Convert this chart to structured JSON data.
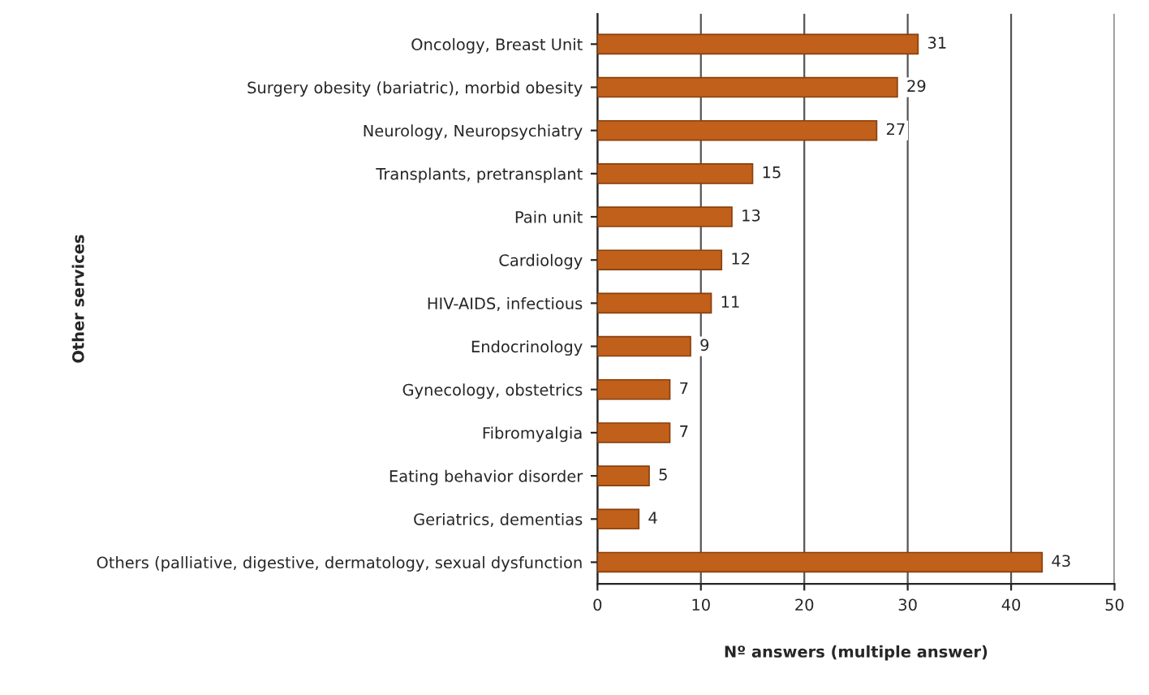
{
  "chart_data": {
    "type": "bar",
    "orientation": "horizontal",
    "categories": [
      "Oncology, Breast Unit",
      "Surgery obesity (bariatric), morbid obesity",
      "Neurology, Neuropsychiatry",
      "Transplants, pretransplant",
      "Pain unit",
      "Cardiology",
      "HIV-AIDS, infectious",
      "Endocrinology",
      "Gynecology, obstetrics",
      "Fibromyalgia",
      "Eating behavior disorder",
      "Geriatrics, dementias",
      "Others (palliative, digestive, dermatology, sexual dysfunction"
    ],
    "values": [
      31,
      29,
      27,
      15,
      13,
      12,
      11,
      9,
      7,
      7,
      5,
      4,
      43
    ],
    "color": "#c0601a",
    "data_labels": true,
    "xlim": [
      0,
      50
    ],
    "xticks": [
      0,
      10,
      20,
      30,
      40,
      50
    ],
    "grid": "x",
    "xlabel": "Nº answers (multiple answer)",
    "ylabel": "Other services"
  }
}
